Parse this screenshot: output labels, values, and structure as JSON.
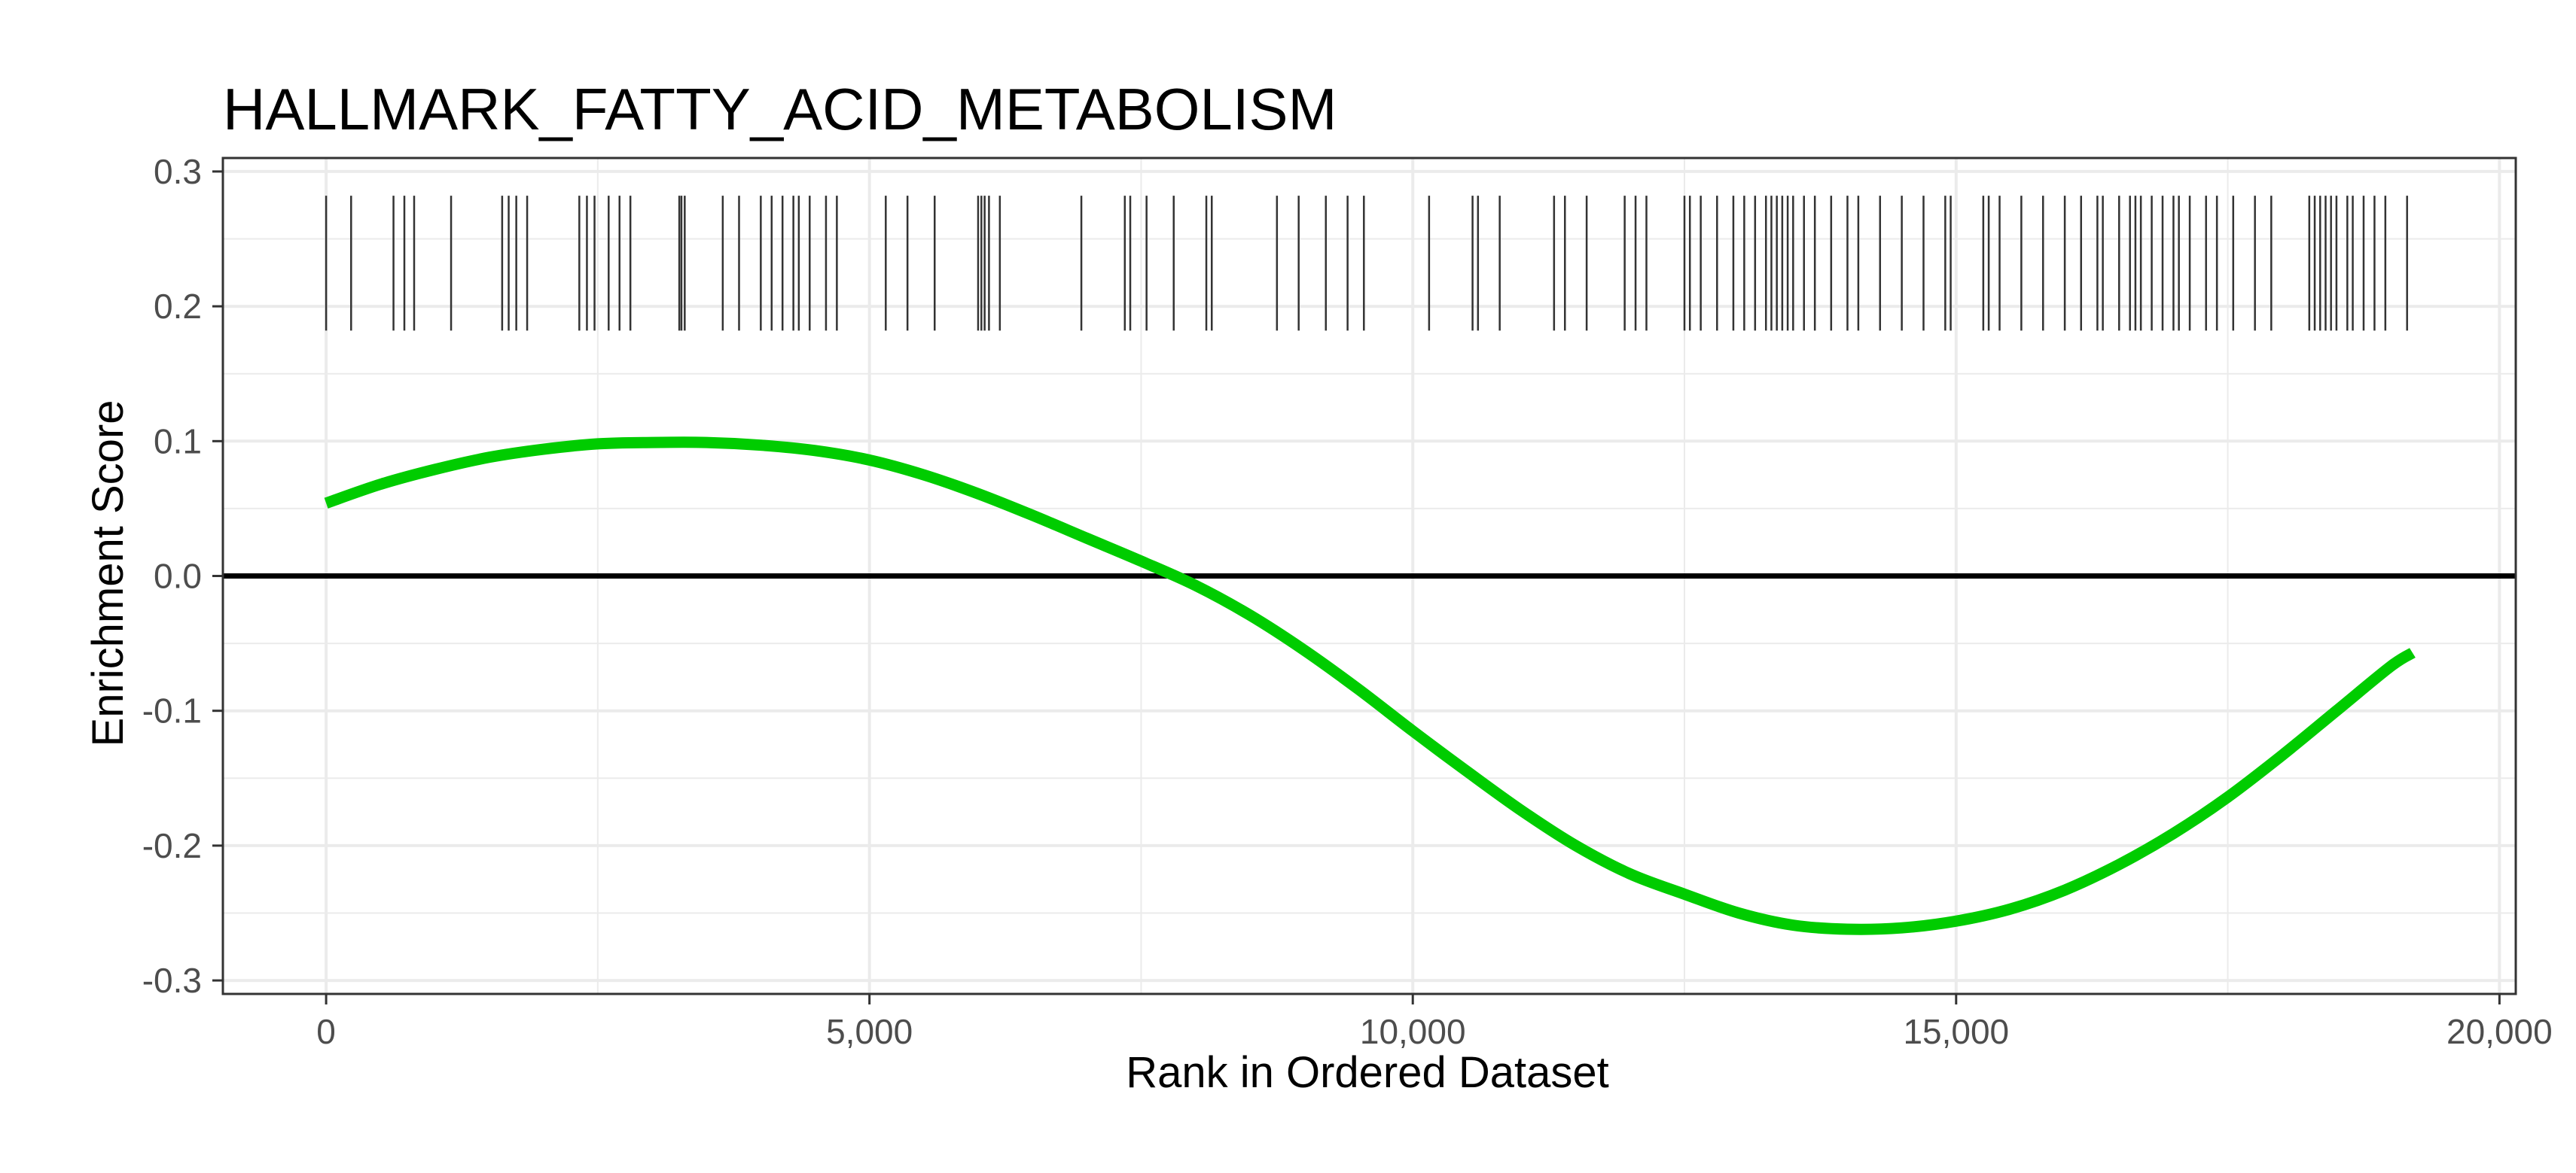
{
  "chart_data": {
    "type": "line",
    "title": "HALLMARK_FATTY_ACID_METABOLISM",
    "xlabel": "Rank in Ordered Dataset",
    "ylabel": "Enrichment Score",
    "xlim": [
      -950,
      20150
    ],
    "ylim": [
      -0.31,
      0.31
    ],
    "x_ticks": [
      0,
      5000,
      10000,
      15000,
      20000
    ],
    "x_tick_labels": [
      "0",
      "5,000",
      "10,000",
      "15,000",
      "20,000"
    ],
    "y_ticks": [
      0.3,
      0.2,
      0.1,
      0.0,
      -0.1,
      -0.2,
      -0.3
    ],
    "y_tick_labels": [
      "0.3",
      "0.2",
      "0.1",
      "0.0",
      "-0.1",
      "-0.2",
      "-0.3"
    ],
    "grid": true,
    "colors": {
      "curve": "#00cc00",
      "zero_line": "#000000",
      "hits": "#333333",
      "grid": "#ebebeb",
      "border": "#333333"
    },
    "series": [
      {
        "x": [
          0,
          500,
          1000,
          1500,
          2000,
          2500,
          3000,
          3500,
          4000,
          4500,
          5000,
          5500,
          6000,
          6500,
          7000,
          7500,
          8000,
          8500,
          9000,
          9500,
          10000,
          10500,
          11000,
          11500,
          12000,
          12500,
          13000,
          13500,
          14000,
          14500,
          15000,
          15500,
          16000,
          16500,
          17000,
          17500,
          18000,
          18500,
          19000,
          19200
        ],
        "y": [
          0.054,
          0.068,
          0.079,
          0.088,
          0.094,
          0.098,
          0.099,
          0.099,
          0.097,
          0.093,
          0.086,
          0.075,
          0.061,
          0.045,
          0.028,
          0.011,
          -0.007,
          -0.029,
          -0.055,
          -0.084,
          -0.115,
          -0.145,
          -0.174,
          -0.2,
          -0.221,
          -0.236,
          -0.25,
          -0.259,
          -0.262,
          -0.261,
          -0.256,
          -0.247,
          -0.233,
          -0.214,
          -0.191,
          -0.164,
          -0.133,
          -0.1,
          -0.067,
          -0.057
        ]
      }
    ],
    "reference_line_y": 0.0,
    "gene_hits": {
      "y_range": [
        0.182,
        0.282
      ],
      "ranks": [
        0,
        230,
        620,
        720,
        810,
        1150,
        1620,
        1680,
        1750,
        1850,
        2330,
        2400,
        2470,
        2600,
        2700,
        2800,
        3250,
        3270,
        3300,
        3650,
        3800,
        4000,
        4100,
        4200,
        4300,
        4350,
        4450,
        4600,
        4700,
        5150,
        5350,
        5600,
        6000,
        6030,
        6060,
        6100,
        6200,
        6950,
        7350,
        7400,
        7550,
        7800,
        8100,
        8150,
        8750,
        8950,
        9200,
        9400,
        9550,
        10150,
        10550,
        10600,
        10800,
        11300,
        11400,
        11600,
        11950,
        12050,
        12150,
        12500,
        12550,
        12650,
        12800,
        12950,
        13050,
        13150,
        13250,
        13300,
        13350,
        13400,
        13450,
        13500,
        13600,
        13700,
        13850,
        14000,
        14100,
        14300,
        14500,
        14700,
        14900,
        14950,
        15250,
        15300,
        15400,
        15600,
        15800,
        16000,
        16150,
        16300,
        16350,
        16500,
        16600,
        16650,
        16700,
        16800,
        16900,
        17000,
        17050,
        17150,
        17300,
        17400,
        17550,
        17750,
        17900,
        18250,
        18300,
        18350,
        18400,
        18450,
        18500,
        18600,
        18650,
        18750,
        18850,
        18950,
        19150
      ]
    }
  }
}
